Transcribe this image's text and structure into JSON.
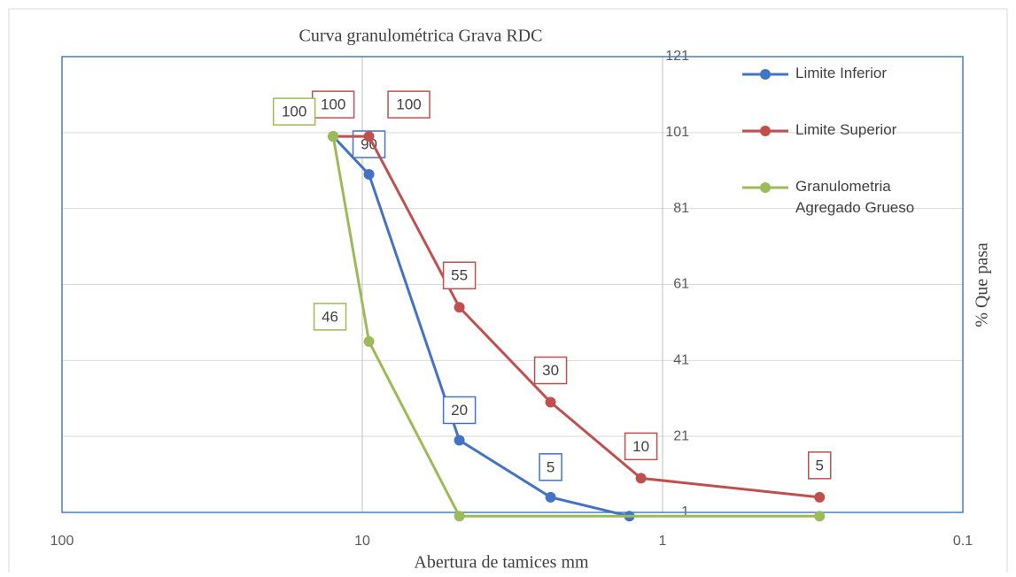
{
  "chart_data": {
    "type": "line",
    "title": "Curva granulométrica Grava RDC",
    "x_label": "Abertura de tamices mm",
    "y_label": "% Que pasa",
    "log_x": true,
    "xlim": [
      100,
      0.1
    ],
    "xticks": [
      100,
      10,
      1,
      0.1
    ],
    "ylim": [
      1,
      121
    ],
    "yticks": [
      1,
      21,
      41,
      61,
      81,
      101,
      121
    ],
    "grid": true,
    "legend": "right",
    "series": [
      {
        "name": "Limite Inferior",
        "color": "#4472c4",
        "x": [
          12.5,
          9.5,
          4.75,
          2.36,
          1.29
        ],
        "values": [
          100,
          90,
          20,
          5,
          0
        ],
        "value_labels": [
          null,
          "90",
          "20",
          "5",
          null
        ]
      },
      {
        "name": "Limite Superior",
        "color": "#c0504d",
        "x": [
          12.5,
          9.5,
          4.75,
          2.36,
          1.18,
          0.3
        ],
        "values": [
          100,
          100,
          55,
          30,
          10,
          5
        ],
        "value_labels": [
          "100",
          "100",
          "55",
          "30",
          "10",
          "5"
        ]
      },
      {
        "name": "Granulometria Agregado Grueso",
        "color": "#9bbb59",
        "x": [
          12.5,
          9.5,
          4.75,
          0.3
        ],
        "values": [
          100,
          46,
          0,
          0
        ],
        "value_labels": [
          "100",
          "46",
          null,
          null
        ]
      }
    ]
  }
}
